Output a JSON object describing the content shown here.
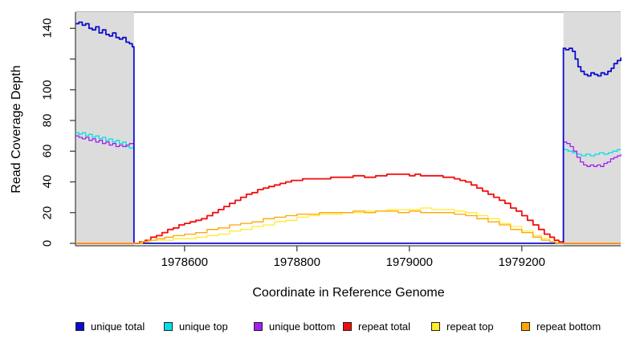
{
  "chart_data": {
    "type": "line",
    "title": "",
    "xlabel": "Coordinate in Reference Genome",
    "ylabel": "Read Coverage Depth",
    "xlim": [
      1978406,
      1979376
    ],
    "ylim": [
      -1.6,
      150.6
    ],
    "x_ticks": [
      1978600,
      1978800,
      1979000,
      1979200
    ],
    "x_tick_labels": [
      "1978600",
      "1978800",
      "1979000",
      "1979200"
    ],
    "y_ticks": [
      0,
      20,
      40,
      60,
      80,
      100,
      120,
      140
    ],
    "y_tick_labels": [
      "0",
      "20",
      "40",
      "60",
      "80",
      "100",
      "",
      "140"
    ],
    "grid": false,
    "legend_position": "bottom",
    "shade_color": "#DCDCDC",
    "shaded_regions": [
      [
        1978406,
        1978510
      ],
      [
        1979274,
        1979376
      ]
    ],
    "series": [
      {
        "name": "unique top",
        "color": "#00E0E8",
        "width": 1.3,
        "points": [
          [
            1978406,
            72
          ],
          [
            1978412,
            71
          ],
          [
            1978418,
            72
          ],
          [
            1978424,
            70
          ],
          [
            1978430,
            71
          ],
          [
            1978436,
            69
          ],
          [
            1978442,
            70
          ],
          [
            1978448,
            68
          ],
          [
            1978454,
            69
          ],
          [
            1978460,
            67
          ],
          [
            1978466,
            68
          ],
          [
            1978472,
            66
          ],
          [
            1978478,
            67
          ],
          [
            1978484,
            65
          ],
          [
            1978490,
            66
          ],
          [
            1978496,
            63
          ],
          [
            1978502,
            62
          ],
          [
            1978510,
            61
          ],
          [
            1978510,
            0
          ],
          [
            1979274,
            0
          ],
          [
            1979274,
            61
          ],
          [
            1979282,
            60
          ],
          [
            1979290,
            59
          ],
          [
            1979298,
            58
          ],
          [
            1979306,
            57
          ],
          [
            1979314,
            58
          ],
          [
            1979322,
            57
          ],
          [
            1979330,
            58
          ],
          [
            1979338,
            59
          ],
          [
            1979346,
            58
          ],
          [
            1979354,
            59
          ],
          [
            1979362,
            60
          ],
          [
            1979370,
            61
          ],
          [
            1979376,
            61
          ]
        ]
      },
      {
        "name": "unique bottom",
        "color": "#A020F0",
        "width": 1.3,
        "points": [
          [
            1978406,
            70
          ],
          [
            1978412,
            69
          ],
          [
            1978418,
            68
          ],
          [
            1978424,
            69
          ],
          [
            1978430,
            67
          ],
          [
            1978436,
            68
          ],
          [
            1978442,
            66
          ],
          [
            1978448,
            67
          ],
          [
            1978454,
            65
          ],
          [
            1978460,
            66
          ],
          [
            1978466,
            64
          ],
          [
            1978472,
            65
          ],
          [
            1978478,
            63
          ],
          [
            1978484,
            64
          ],
          [
            1978490,
            63
          ],
          [
            1978496,
            64
          ],
          [
            1978502,
            65
          ],
          [
            1978510,
            64
          ],
          [
            1978510,
            0
          ],
          [
            1979274,
            0
          ],
          [
            1979274,
            66
          ],
          [
            1979280,
            65
          ],
          [
            1979286,
            63
          ],
          [
            1979292,
            60
          ],
          [
            1979298,
            56
          ],
          [
            1979304,
            53
          ],
          [
            1979310,
            51
          ],
          [
            1979316,
            50
          ],
          [
            1979322,
            51
          ],
          [
            1979328,
            50
          ],
          [
            1979334,
            51
          ],
          [
            1979340,
            50
          ],
          [
            1979346,
            52
          ],
          [
            1979352,
            53
          ],
          [
            1979358,
            55
          ],
          [
            1979364,
            56
          ],
          [
            1979370,
            57
          ],
          [
            1979376,
            58
          ]
        ]
      },
      {
        "name": "unique total",
        "color": "#0B0BCE",
        "width": 1.8,
        "points": [
          [
            1978406,
            143
          ],
          [
            1978412,
            144
          ],
          [
            1978418,
            142
          ],
          [
            1978424,
            143
          ],
          [
            1978430,
            140
          ],
          [
            1978436,
            139
          ],
          [
            1978442,
            141
          ],
          [
            1978448,
            137
          ],
          [
            1978454,
            139
          ],
          [
            1978460,
            136
          ],
          [
            1978466,
            135
          ],
          [
            1978472,
            137
          ],
          [
            1978478,
            134
          ],
          [
            1978484,
            133
          ],
          [
            1978490,
            134
          ],
          [
            1978496,
            131
          ],
          [
            1978502,
            130
          ],
          [
            1978507,
            128
          ],
          [
            1978510,
            127
          ],
          [
            1978510,
            0
          ],
          [
            1979274,
            0
          ],
          [
            1979274,
            127
          ],
          [
            1979278,
            126
          ],
          [
            1979284,
            127
          ],
          [
            1979290,
            125
          ],
          [
            1979295,
            120
          ],
          [
            1979300,
            115
          ],
          [
            1979305,
            112
          ],
          [
            1979311,
            110
          ],
          [
            1979317,
            109
          ],
          [
            1979323,
            111
          ],
          [
            1979329,
            110
          ],
          [
            1979335,
            109
          ],
          [
            1979341,
            111
          ],
          [
            1979347,
            110
          ],
          [
            1979353,
            112
          ],
          [
            1979359,
            114
          ],
          [
            1979364,
            117
          ],
          [
            1979370,
            119
          ],
          [
            1979376,
            121
          ]
        ]
      },
      {
        "name": "repeat total",
        "color": "#F20D0D",
        "width": 1.8,
        "points": [
          [
            1978406,
            0
          ],
          [
            1978512,
            0
          ],
          [
            1978520,
            1
          ],
          [
            1978530,
            2
          ],
          [
            1978540,
            4
          ],
          [
            1978550,
            5
          ],
          [
            1978560,
            7
          ],
          [
            1978570,
            9
          ],
          [
            1978580,
            10
          ],
          [
            1978590,
            12
          ],
          [
            1978600,
            13
          ],
          [
            1978610,
            14
          ],
          [
            1978620,
            15
          ],
          [
            1978630,
            16
          ],
          [
            1978640,
            18
          ],
          [
            1978650,
            20
          ],
          [
            1978660,
            22
          ],
          [
            1978670,
            24
          ],
          [
            1978680,
            26
          ],
          [
            1978690,
            28
          ],
          [
            1978700,
            30
          ],
          [
            1978710,
            32
          ],
          [
            1978720,
            33
          ],
          [
            1978730,
            35
          ],
          [
            1978740,
            36
          ],
          [
            1978750,
            37
          ],
          [
            1978760,
            38
          ],
          [
            1978770,
            39
          ],
          [
            1978780,
            40
          ],
          [
            1978790,
            41
          ],
          [
            1978800,
            41
          ],
          [
            1978810,
            42
          ],
          [
            1978820,
            42
          ],
          [
            1978840,
            42
          ],
          [
            1978860,
            43
          ],
          [
            1978880,
            43
          ],
          [
            1978900,
            44
          ],
          [
            1978920,
            43
          ],
          [
            1978940,
            44
          ],
          [
            1978960,
            45
          ],
          [
            1978980,
            45
          ],
          [
            1979000,
            44
          ],
          [
            1979010,
            45
          ],
          [
            1979020,
            44
          ],
          [
            1979040,
            44
          ],
          [
            1979060,
            43
          ],
          [
            1979080,
            42
          ],
          [
            1979090,
            41
          ],
          [
            1979100,
            40
          ],
          [
            1979110,
            38
          ],
          [
            1979120,
            36
          ],
          [
            1979130,
            34
          ],
          [
            1979140,
            32
          ],
          [
            1979150,
            30
          ],
          [
            1979160,
            28
          ],
          [
            1979170,
            26
          ],
          [
            1979180,
            23
          ],
          [
            1979190,
            21
          ],
          [
            1979200,
            18
          ],
          [
            1979210,
            15
          ],
          [
            1979220,
            12
          ],
          [
            1979230,
            9
          ],
          [
            1979240,
            6
          ],
          [
            1979250,
            4
          ],
          [
            1979258,
            2
          ],
          [
            1979266,
            1
          ],
          [
            1979272,
            0
          ],
          [
            1979376,
            0
          ]
        ]
      },
      {
        "name": "repeat top",
        "color": "#FFEC2E",
        "width": 1.3,
        "points": [
          [
            1978406,
            0
          ],
          [
            1978515,
            0
          ],
          [
            1978525,
            1
          ],
          [
            1978540,
            2
          ],
          [
            1978560,
            2
          ],
          [
            1978580,
            3
          ],
          [
            1978600,
            3
          ],
          [
            1978620,
            4
          ],
          [
            1978640,
            5
          ],
          [
            1978660,
            6
          ],
          [
            1978680,
            8
          ],
          [
            1978700,
            9
          ],
          [
            1978720,
            11
          ],
          [
            1978740,
            12
          ],
          [
            1978760,
            14
          ],
          [
            1978780,
            15
          ],
          [
            1978800,
            17
          ],
          [
            1978820,
            18
          ],
          [
            1978840,
            19
          ],
          [
            1978860,
            19
          ],
          [
            1978880,
            20
          ],
          [
            1978900,
            20
          ],
          [
            1978920,
            21
          ],
          [
            1978940,
            21
          ],
          [
            1978960,
            22
          ],
          [
            1978980,
            22
          ],
          [
            1979000,
            22
          ],
          [
            1979020,
            23
          ],
          [
            1979040,
            22
          ],
          [
            1979060,
            22
          ],
          [
            1979080,
            21
          ],
          [
            1979100,
            20
          ],
          [
            1979120,
            18
          ],
          [
            1979140,
            16
          ],
          [
            1979160,
            13
          ],
          [
            1979180,
            11
          ],
          [
            1979200,
            8
          ],
          [
            1979220,
            5
          ],
          [
            1979235,
            3
          ],
          [
            1979250,
            1
          ],
          [
            1979262,
            0
          ],
          [
            1979376,
            0
          ]
        ]
      },
      {
        "name": "repeat bottom",
        "color": "#FFA500",
        "width": 1.3,
        "points": [
          [
            1978406,
            0
          ],
          [
            1978512,
            0
          ],
          [
            1978522,
            1
          ],
          [
            1978535,
            2
          ],
          [
            1978550,
            3
          ],
          [
            1978565,
            4
          ],
          [
            1978580,
            5
          ],
          [
            1978600,
            6
          ],
          [
            1978620,
            7
          ],
          [
            1978640,
            9
          ],
          [
            1978660,
            10
          ],
          [
            1978680,
            12
          ],
          [
            1978700,
            13
          ],
          [
            1978720,
            14
          ],
          [
            1978740,
            16
          ],
          [
            1978760,
            17
          ],
          [
            1978780,
            18
          ],
          [
            1978800,
            19
          ],
          [
            1978820,
            19
          ],
          [
            1978840,
            20
          ],
          [
            1978860,
            20
          ],
          [
            1978880,
            20
          ],
          [
            1978900,
            21
          ],
          [
            1978920,
            20
          ],
          [
            1978940,
            21
          ],
          [
            1978960,
            21
          ],
          [
            1978980,
            20
          ],
          [
            1979000,
            21
          ],
          [
            1979020,
            20
          ],
          [
            1979040,
            20
          ],
          [
            1979060,
            20
          ],
          [
            1979080,
            19
          ],
          [
            1979100,
            18
          ],
          [
            1979120,
            16
          ],
          [
            1979140,
            14
          ],
          [
            1979160,
            12
          ],
          [
            1979180,
            9
          ],
          [
            1979200,
            7
          ],
          [
            1979220,
            4
          ],
          [
            1979235,
            2
          ],
          [
            1979250,
            1
          ],
          [
            1979260,
            0
          ],
          [
            1979376,
            0
          ]
        ]
      }
    ],
    "legend_order": [
      2,
      0,
      1,
      3,
      4,
      5
    ],
    "colors": {
      "box_border": "#4a4a4a",
      "box_top_border": "#909090",
      "tick": "#333333",
      "background": "#ffffff"
    }
  }
}
